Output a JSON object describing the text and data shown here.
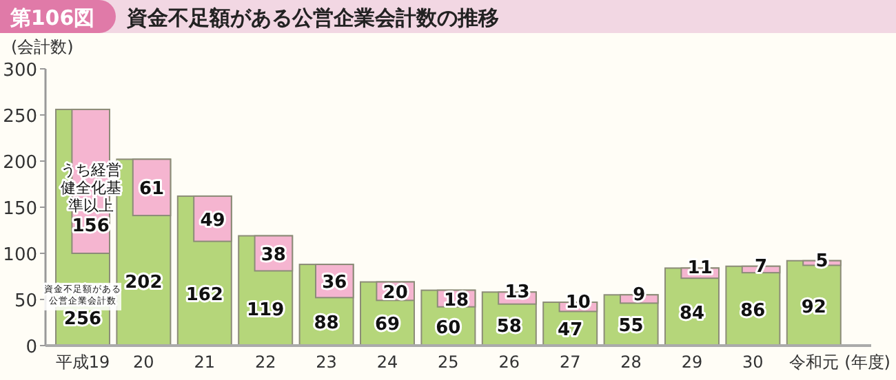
{
  "chart_data": {
    "type": "bar",
    "title": "資金不足額がある公営企業会計数の推移",
    "annotations": [
      "第106図"
    ],
    "ylabel": "(会計数)",
    "xlabel": "(年度)",
    "categories": [
      "平成19",
      "20",
      "21",
      "22",
      "23",
      "24",
      "25",
      "26",
      "27",
      "28",
      "29",
      "30",
      "令和元"
    ],
    "series": [
      {
        "name": "資金不足額がある公営企業会計数",
        "type": "bar",
        "color": "#b5d67a",
        "values": [
          256,
          202,
          162,
          119,
          88,
          69,
          60,
          58,
          47,
          55,
          84,
          86,
          92
        ]
      },
      {
        "name": "うち経営健全化基準以上",
        "type": "bar",
        "color": "#f5b5d0",
        "values": [
          156,
          61,
          49,
          38,
          36,
          20,
          18,
          13,
          10,
          9,
          11,
          7,
          5
        ],
        "base": [
          100,
          141,
          113,
          81,
          52,
          49,
          42,
          45,
          37,
          46,
          73,
          79,
          87
        ]
      }
    ],
    "ylim": [
      0,
      300
    ],
    "yticks": [
      0,
      50,
      100,
      150,
      200,
      250,
      300
    ],
    "data_labels": true
  }
}
